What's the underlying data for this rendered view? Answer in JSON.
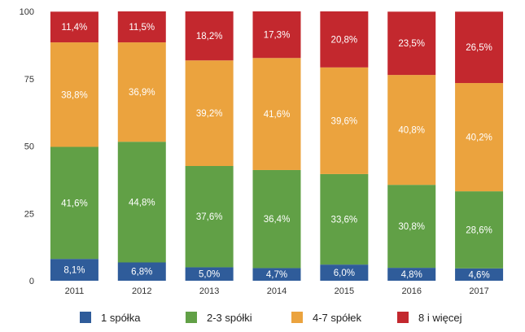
{
  "chart_data": {
    "type": "bar",
    "stacked": true,
    "categories": [
      "2011",
      "2012",
      "2013",
      "2014",
      "2015",
      "2016",
      "2017"
    ],
    "series": [
      {
        "name": "1 spółka",
        "color": "#2f5c9a",
        "values": [
          8.1,
          6.8,
          5.0,
          4.7,
          6.0,
          4.8,
          4.6
        ],
        "labels": [
          "8,1%",
          "6,8%",
          "5,0%",
          "4,7%",
          "6,0%",
          "4,8%",
          "4,6%"
        ]
      },
      {
        "name": "2-3 spółki",
        "color": "#61a046",
        "values": [
          41.6,
          44.8,
          37.6,
          36.4,
          33.6,
          30.8,
          28.6
        ],
        "labels": [
          "41,6%",
          "44,8%",
          "37,6%",
          "36,4%",
          "33,6%",
          "30,8%",
          "28,6%"
        ]
      },
      {
        "name": "4-7 spółek",
        "color": "#eba33e",
        "values": [
          38.8,
          36.9,
          39.2,
          41.6,
          39.6,
          40.8,
          40.2
        ],
        "labels": [
          "38,8%",
          "36,9%",
          "39,2%",
          "41,6%",
          "39,6%",
          "40,8%",
          "40,2%"
        ]
      },
      {
        "name": "8 i więcej",
        "color": "#c3282e",
        "values": [
          11.4,
          11.5,
          18.2,
          17.3,
          20.8,
          23.5,
          26.5
        ],
        "labels": [
          "11,4%",
          "11,5%",
          "18,2%",
          "17,3%",
          "20,8%",
          "23,5%",
          "26,5%"
        ]
      }
    ],
    "yticks": [
      "0",
      "25",
      "50",
      "75",
      "100"
    ],
    "ylim": [
      0,
      100
    ],
    "grid": false,
    "legend_position": "bottom",
    "title": "",
    "xlabel": "",
    "ylabel": ""
  }
}
